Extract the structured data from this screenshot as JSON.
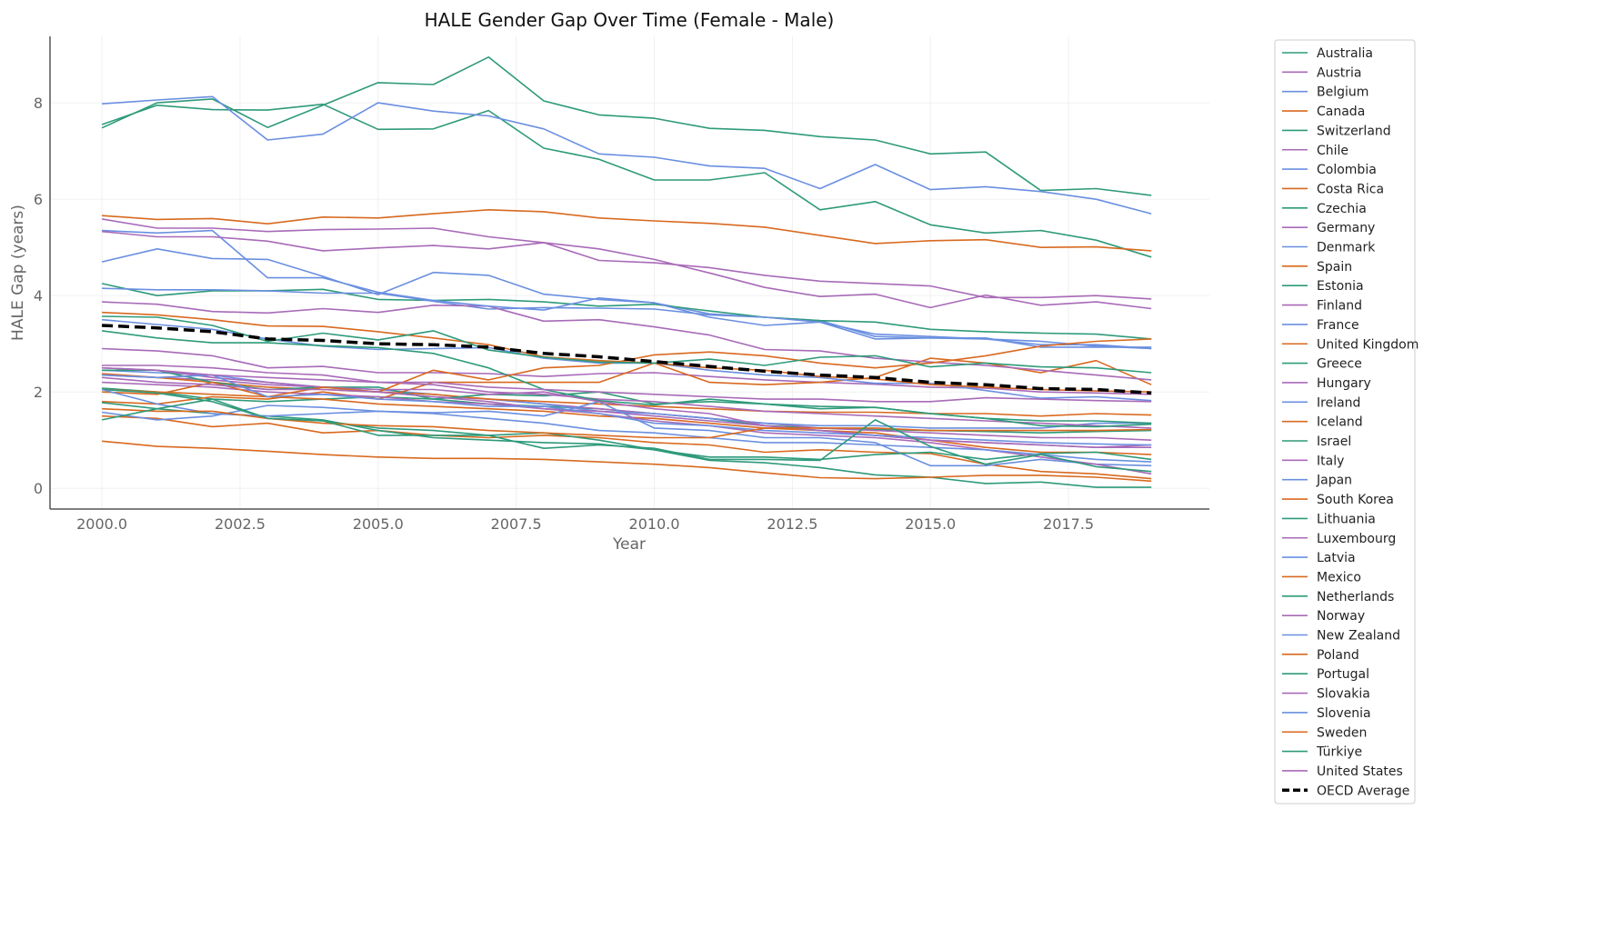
{
  "chart_data": {
    "type": "line",
    "title": "HALE Gender Gap Over Time (Female - Male)",
    "xlabel": "Year",
    "ylabel": "HALE Gap (years)",
    "xlim": [
      1999.06,
      2020.05
    ],
    "ylim": [
      -0.43,
      9.38
    ],
    "xticks": [
      2000.0,
      2002.5,
      2005.0,
      2007.5,
      2010.0,
      2012.5,
      2015.0,
      2017.5
    ],
    "xtick_labels": [
      "2000.0",
      "2002.5",
      "2005.0",
      "2007.5",
      "2010.0",
      "2012.5",
      "2015.0",
      "2017.5"
    ],
    "yticks": [
      0,
      2,
      4,
      6,
      8
    ],
    "ytick_labels": [
      "0",
      "2",
      "4",
      "6",
      "8"
    ],
    "grid": true,
    "legend_placement": "outside-right",
    "x": [
      2000,
      2001,
      2002,
      2003,
      2004,
      2005,
      2006,
      2007,
      2008,
      2009,
      2010,
      2011,
      2012,
      2013,
      2014,
      2015,
      2016,
      2017,
      2018,
      2019
    ],
    "series": [
      {
        "name": "Australia",
        "color": "#2e9a7a",
        "values": [
          2.08,
          2.0,
          1.85,
          1.8,
          1.85,
          1.9,
          1.85,
          1.75,
          1.7,
          1.65,
          1.55,
          1.45,
          1.3,
          1.25,
          1.22,
          1.2,
          1.18,
          1.15,
          1.18,
          1.2
        ]
      },
      {
        "name": "Austria",
        "color": "#a86ab8",
        "values": [
          2.35,
          2.3,
          2.25,
          2.15,
          2.1,
          2.0,
          1.9,
          1.85,
          1.75,
          1.65,
          1.55,
          1.45,
          1.35,
          1.25,
          1.2,
          1.15,
          1.1,
          1.05,
          1.05,
          1.0
        ]
      },
      {
        "name": "Belgium",
        "color": "#6a8fe0",
        "values": [
          2.45,
          2.4,
          2.35,
          2.2,
          2.1,
          2.05,
          1.95,
          1.85,
          1.75,
          1.6,
          1.55,
          1.45,
          1.35,
          1.3,
          1.3,
          1.25,
          1.25,
          1.25,
          1.35,
          1.35
        ]
      },
      {
        "name": "Canada",
        "color": "#d8691f",
        "values": [
          2.38,
          2.3,
          2.2,
          2.1,
          2.05,
          2.0,
          1.95,
          1.85,
          1.8,
          1.75,
          1.7,
          1.65,
          1.6,
          1.58,
          1.58,
          1.55,
          1.55,
          1.5,
          1.55,
          1.52
        ]
      },
      {
        "name": "Switzerland",
        "color": "#2e9a7a",
        "values": [
          2.45,
          2.45,
          2.2,
          2.05,
          2.1,
          2.1,
          1.85,
          1.95,
          1.92,
          2.0,
          1.75,
          1.8,
          1.75,
          1.7,
          1.68,
          1.55,
          1.45,
          1.4,
          1.4,
          1.35
        ]
      },
      {
        "name": "Chile",
        "color": "#a86ab8",
        "values": [
          2.9,
          2.85,
          2.75,
          2.5,
          2.53,
          2.4,
          2.4,
          2.38,
          2.32,
          2.38,
          2.4,
          2.32,
          2.25,
          2.2,
          2.16,
          2.1,
          2.08,
          2.0,
          1.98,
          1.95
        ]
      },
      {
        "name": "Colombia",
        "color": "#6a8fe0",
        "values": [
          4.7,
          4.97,
          4.77,
          4.75,
          4.4,
          4.02,
          4.48,
          4.42,
          4.03,
          3.92,
          3.85,
          3.62,
          3.55,
          3.48,
          3.15,
          3.12,
          3.1,
          3.05,
          2.95,
          2.9
        ]
      },
      {
        "name": "Costa Rica",
        "color": "#d8691f",
        "values": [
          1.8,
          1.75,
          1.9,
          1.85,
          2.0,
          1.85,
          2.2,
          2.2,
          2.2,
          2.2,
          2.6,
          2.2,
          2.15,
          2.2,
          2.3,
          2.7,
          2.6,
          2.4,
          2.65,
          2.15
        ]
      },
      {
        "name": "Czechia",
        "color": "#2e9a7a",
        "values": [
          4.25,
          4.0,
          4.1,
          4.1,
          4.13,
          3.92,
          3.9,
          3.92,
          3.87,
          3.78,
          3.82,
          3.68,
          3.55,
          3.48,
          3.45,
          3.3,
          3.25,
          3.22,
          3.2,
          3.1
        ]
      },
      {
        "name": "Germany",
        "color": "#a86ab8",
        "values": [
          2.55,
          2.55,
          2.5,
          2.4,
          2.35,
          2.2,
          2.15,
          2.0,
          1.95,
          1.85,
          1.8,
          1.7,
          1.6,
          1.55,
          1.5,
          1.45,
          1.4,
          1.35,
          1.3,
          1.25
        ]
      },
      {
        "name": "Denmark",
        "color": "#6a8fe0",
        "values": [
          4.15,
          4.12,
          4.12,
          4.1,
          4.05,
          4.05,
          3.88,
          3.72,
          3.75,
          3.74,
          3.72,
          3.6,
          3.55,
          3.45,
          3.2,
          3.15,
          3.1,
          2.98,
          2.98,
          2.9
        ]
      },
      {
        "name": "Spain",
        "color": "#d8691f",
        "values": [
          2.05,
          2.0,
          1.95,
          1.9,
          1.85,
          1.75,
          1.7,
          1.65,
          1.6,
          1.5,
          1.45,
          1.35,
          1.25,
          1.2,
          1.15,
          1.0,
          0.85,
          0.75,
          0.75,
          0.7
        ]
      },
      {
        "name": "Estonia",
        "color": "#2e9a7a",
        "values": [
          7.55,
          7.95,
          7.86,
          7.85,
          7.97,
          7.45,
          7.46,
          7.84,
          7.06,
          6.83,
          6.4,
          6.4,
          6.55,
          5.78,
          5.95,
          5.47,
          5.3,
          5.35,
          5.15,
          4.8
        ]
      },
      {
        "name": "Finland",
        "color": "#a86ab8",
        "values": [
          3.87,
          3.82,
          3.67,
          3.64,
          3.73,
          3.65,
          3.8,
          3.78,
          3.47,
          3.5,
          3.35,
          3.18,
          2.88,
          2.85,
          2.7,
          2.62,
          2.55,
          2.45,
          2.35,
          2.25
        ]
      },
      {
        "name": "France",
        "color": "#6a8fe0",
        "values": [
          3.5,
          3.4,
          3.3,
          3.1,
          2.95,
          2.88,
          2.9,
          2.92,
          2.7,
          2.6,
          2.6,
          2.45,
          2.35,
          2.3,
          2.18,
          2.18,
          2.03,
          1.87,
          1.9,
          1.82
        ]
      },
      {
        "name": "United Kingdom",
        "color": "#d8691f",
        "values": [
          3.65,
          3.6,
          3.5,
          3.37,
          3.36,
          3.25,
          3.12,
          2.98,
          2.73,
          2.65,
          2.6,
          2.5,
          2.45,
          2.32,
          2.27,
          2.15,
          2.1,
          2.05,
          2.02,
          2.0
        ]
      },
      {
        "name": "Greece",
        "color": "#2e9a7a",
        "values": [
          3.27,
          3.12,
          3.02,
          3.02,
          2.96,
          2.92,
          2.8,
          2.5,
          2.05,
          1.82,
          1.73,
          1.85,
          1.75,
          1.65,
          1.68,
          1.55,
          1.45,
          1.3,
          1.28,
          1.33
        ]
      },
      {
        "name": "Hungary",
        "color": "#a86ab8",
        "values": [
          5.59,
          5.4,
          5.4,
          5.33,
          5.37,
          5.38,
          5.4,
          5.22,
          5.1,
          4.73,
          4.68,
          4.58,
          4.42,
          4.3,
          4.25,
          4.2,
          3.96,
          3.96,
          4.0,
          3.93
        ]
      },
      {
        "name": "Ireland",
        "color": "#6a8fe0",
        "values": [
          5.35,
          5.3,
          5.35,
          4.37,
          4.37,
          4.07,
          3.9,
          3.78,
          3.7,
          3.95,
          3.85,
          3.55,
          3.38,
          3.45,
          3.1,
          3.12,
          3.12,
          2.93,
          2.93,
          2.93
        ]
      },
      {
        "name": "Iceland",
        "color": "#d8691f",
        "values": [
          1.5,
          1.45,
          1.28,
          1.35,
          1.15,
          1.2,
          1.1,
          1.05,
          1.1,
          1.05,
          0.95,
          0.9,
          0.75,
          0.8,
          0.75,
          0.72,
          0.5,
          0.35,
          0.3,
          0.2
        ]
      },
      {
        "name": "Israel",
        "color": "#2e9a7a",
        "values": [
          1.78,
          1.65,
          1.55,
          1.5,
          1.42,
          1.2,
          1.05,
          1.0,
          0.95,
          0.92,
          0.8,
          0.58,
          0.53,
          0.43,
          0.28,
          0.23,
          0.1,
          0.13,
          0.02,
          0.02
        ]
      },
      {
        "name": "Italy",
        "color": "#a86ab8",
        "values": [
          2.2,
          2.15,
          2.1,
          2.0,
          1.95,
          1.9,
          1.8,
          1.75,
          1.65,
          1.6,
          1.5,
          1.4,
          1.3,
          1.2,
          1.1,
          1.0,
          0.95,
          0.9,
          0.85,
          0.85
        ]
      },
      {
        "name": "Japan",
        "color": "#6a8fe0",
        "values": [
          1.58,
          1.42,
          1.5,
          1.72,
          1.68,
          1.6,
          1.57,
          1.6,
          1.5,
          1.8,
          1.25,
          1.2,
          1.05,
          1.05,
          0.95,
          0.47,
          0.47,
          0.6,
          0.5,
          0.47
        ]
      },
      {
        "name": "South Korea",
        "color": "#d8691f",
        "values": [
          0.98,
          0.87,
          0.83,
          0.77,
          0.7,
          0.65,
          0.62,
          0.62,
          0.6,
          0.55,
          0.5,
          0.43,
          0.32,
          0.22,
          0.2,
          0.23,
          0.27,
          0.27,
          0.23,
          0.15
        ]
      },
      {
        "name": "Lithuania",
        "color": "#2e9a7a",
        "values": [
          7.48,
          8.0,
          8.08,
          7.49,
          7.95,
          8.42,
          8.38,
          8.95,
          8.04,
          7.75,
          7.68,
          7.47,
          7.43,
          7.3,
          7.23,
          6.94,
          6.98,
          6.18,
          6.22,
          6.08
        ]
      },
      {
        "name": "Luxembourg",
        "color": "#a86ab8",
        "values": [
          2.5,
          2.45,
          2.3,
          2.2,
          2.1,
          2.05,
          2.05,
          1.95,
          2.0,
          1.8,
          1.65,
          1.55,
          1.3,
          1.2,
          1.1,
          1.0,
          0.95,
          0.9,
          0.85,
          0.9
        ]
      },
      {
        "name": "Latvia",
        "color": "#6a8fe0",
        "values": [
          7.98,
          8.06,
          8.13,
          7.23,
          7.35,
          8.0,
          7.83,
          7.73,
          7.46,
          6.94,
          6.87,
          6.69,
          6.64,
          6.22,
          6.72,
          6.2,
          6.26,
          6.16,
          6.0,
          5.7
        ]
      },
      {
        "name": "Mexico",
        "color": "#d8691f",
        "values": [
          2.0,
          1.95,
          2.2,
          1.9,
          2.1,
          2.0,
          2.45,
          2.25,
          2.5,
          2.55,
          2.77,
          2.83,
          2.75,
          2.6,
          2.5,
          2.6,
          2.75,
          2.95,
          3.05,
          3.1
        ]
      },
      {
        "name": "Netherlands",
        "color": "#2e9a7a",
        "values": [
          2.05,
          1.98,
          1.8,
          1.45,
          1.4,
          1.25,
          1.2,
          1.1,
          1.15,
          1.0,
          0.8,
          0.65,
          0.65,
          0.6,
          0.7,
          0.75,
          0.6,
          0.72,
          0.75,
          0.6
        ]
      },
      {
        "name": "Norway",
        "color": "#a86ab8",
        "values": [
          2.3,
          2.2,
          2.15,
          2.05,
          2.05,
          2.0,
          1.9,
          1.8,
          1.65,
          1.55,
          1.4,
          1.3,
          1.15,
          1.1,
          1.05,
          0.95,
          0.8,
          0.65,
          0.5,
          0.3
        ]
      },
      {
        "name": "New Zealand",
        "color": "#6a8fe0",
        "values": [
          2.05,
          1.75,
          1.55,
          1.5,
          1.55,
          1.6,
          1.55,
          1.45,
          1.35,
          1.2,
          1.15,
          1.05,
          0.95,
          0.95,
          0.9,
          0.85,
          0.8,
          0.7,
          0.6,
          0.55
        ]
      },
      {
        "name": "Poland",
        "color": "#d8691f",
        "values": [
          5.66,
          5.58,
          5.6,
          5.49,
          5.63,
          5.61,
          5.7,
          5.78,
          5.74,
          5.61,
          5.55,
          5.5,
          5.42,
          5.25,
          5.08,
          5.14,
          5.16,
          5.0,
          5.01,
          4.93
        ]
      },
      {
        "name": "Portugal",
        "color": "#2e9a7a",
        "values": [
          3.57,
          3.55,
          3.38,
          3.05,
          3.22,
          3.08,
          3.27,
          2.87,
          2.72,
          2.62,
          2.6,
          2.68,
          2.55,
          2.72,
          2.75,
          2.52,
          2.6,
          2.52,
          2.5,
          2.4
        ]
      },
      {
        "name": "Slovakia",
        "color": "#a86ab8",
        "values": [
          5.33,
          5.22,
          5.22,
          5.13,
          4.93,
          4.99,
          5.04,
          4.97,
          5.1,
          4.97,
          4.75,
          4.47,
          4.17,
          3.98,
          4.03,
          3.75,
          4.01,
          3.8,
          3.87,
          3.73
        ]
      },
      {
        "name": "Slovenia",
        "color": "#6a8fe0",
        "values": [
          2.35,
          2.3,
          2.35,
          1.9,
          1.95,
          1.85,
          1.8,
          1.7,
          1.7,
          1.55,
          1.35,
          1.3,
          1.2,
          1.15,
          1.1,
          1.05,
          1.0,
          0.95,
          0.92,
          0.9
        ]
      },
      {
        "name": "Sweden",
        "color": "#d8691f",
        "values": [
          1.65,
          1.6,
          1.6,
          1.45,
          1.35,
          1.3,
          1.28,
          1.2,
          1.15,
          1.1,
          1.05,
          1.05,
          1.25,
          1.25,
          1.25,
          1.2,
          1.2,
          1.2,
          1.2,
          1.22
        ]
      },
      {
        "name": "Türkiye",
        "color": "#2e9a7a",
        "values": [
          1.42,
          1.65,
          1.85,
          1.45,
          1.4,
          1.1,
          1.1,
          1.1,
          0.83,
          0.9,
          0.83,
          0.6,
          0.6,
          0.58,
          1.42,
          0.87,
          0.5,
          0.7,
          0.45,
          0.35
        ]
      },
      {
        "name": "United States",
        "color": "#a86ab8",
        "values": [
          2.5,
          2.45,
          2.35,
          2.3,
          2.25,
          2.2,
          2.2,
          2.1,
          2.05,
          2.0,
          1.95,
          1.9,
          1.85,
          1.85,
          1.8,
          1.8,
          1.88,
          1.85,
          1.82,
          1.8
        ]
      },
      {
        "name": "OECD Average",
        "color": "#000000",
        "dashed": true,
        "values": [
          3.38,
          3.33,
          3.25,
          3.1,
          3.07,
          3.0,
          2.98,
          2.93,
          2.8,
          2.73,
          2.63,
          2.53,
          2.43,
          2.35,
          2.3,
          2.2,
          2.15,
          2.07,
          2.05,
          1.98
        ]
      }
    ]
  }
}
